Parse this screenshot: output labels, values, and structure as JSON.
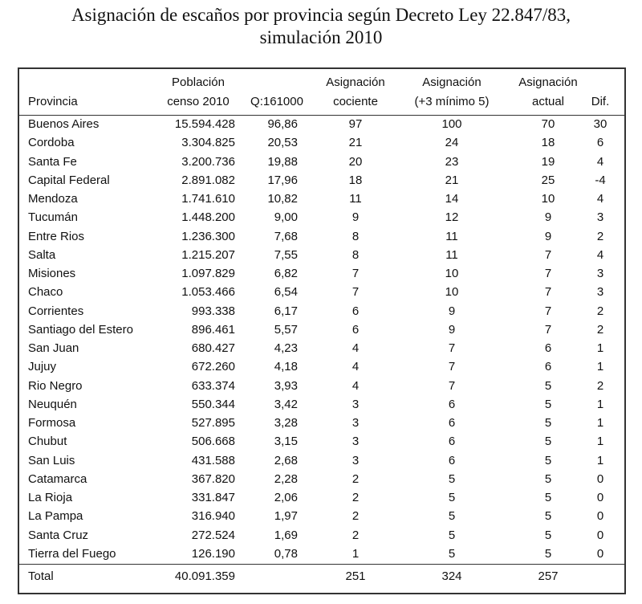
{
  "header": {
    "title_lines": [
      "Asignación de escaños por provincia según Decreto Ley 22.847/83,",
      "simulación 2010"
    ]
  },
  "table": {
    "columns": {
      "provincia": [
        "Provincia"
      ],
      "poblacion": [
        "Población",
        "censo 2010"
      ],
      "q": [
        "Q:161000"
      ],
      "cociente": [
        "Asignación",
        "cociente"
      ],
      "minimo": [
        "Asignación",
        "(+3 mínimo 5)"
      ],
      "actual": [
        "Asignación",
        "actual"
      ],
      "dif": [
        "Dif."
      ]
    },
    "rows": [
      [
        "Buenos Aires",
        "15.594.428",
        "96,86",
        "97",
        "100",
        "70",
        "30"
      ],
      [
        "Cordoba",
        "3.304.825",
        "20,53",
        "21",
        "24",
        "18",
        "6"
      ],
      [
        "Santa Fe",
        "3.200.736",
        "19,88",
        "20",
        "23",
        "19",
        "4"
      ],
      [
        "Capital Federal",
        "2.891.082",
        "17,96",
        "18",
        "21",
        "25",
        "-4"
      ],
      [
        "Mendoza",
        "1.741.610",
        "10,82",
        "11",
        "14",
        "10",
        "4"
      ],
      [
        "Tucumán",
        "1.448.200",
        "9,00",
        "9",
        "12",
        "9",
        "3"
      ],
      [
        "Entre Rios",
        "1.236.300",
        "7,68",
        "8",
        "11",
        "9",
        "2"
      ],
      [
        "Salta",
        "1.215.207",
        "7,55",
        "8",
        "11",
        "7",
        "4"
      ],
      [
        "Misiones",
        "1.097.829",
        "6,82",
        "7",
        "10",
        "7",
        "3"
      ],
      [
        "Chaco",
        "1.053.466",
        "6,54",
        "7",
        "10",
        "7",
        "3"
      ],
      [
        "Corrientes",
        "993.338",
        "6,17",
        "6",
        "9",
        "7",
        "2"
      ],
      [
        "Santiago del Estero",
        "896.461",
        "5,57",
        "6",
        "9",
        "7",
        "2"
      ],
      [
        "San Juan",
        "680.427",
        "4,23",
        "4",
        "7",
        "6",
        "1"
      ],
      [
        "Jujuy",
        "672.260",
        "4,18",
        "4",
        "7",
        "6",
        "1"
      ],
      [
        "Rio Negro",
        "633.374",
        "3,93",
        "4",
        "7",
        "5",
        "2"
      ],
      [
        "Neuquén",
        "550.344",
        "3,42",
        "3",
        "6",
        "5",
        "1"
      ],
      [
        "Formosa",
        "527.895",
        "3,28",
        "3",
        "6",
        "5",
        "1"
      ],
      [
        "Chubut",
        "506.668",
        "3,15",
        "3",
        "6",
        "5",
        "1"
      ],
      [
        "San Luis",
        "431.588",
        "2,68",
        "3",
        "6",
        "5",
        "1"
      ],
      [
        "Catamarca",
        "367.820",
        "2,28",
        "2",
        "5",
        "5",
        "0"
      ],
      [
        "La Rioja",
        "331.847",
        "2,06",
        "2",
        "5",
        "5",
        "0"
      ],
      [
        "La Pampa",
        "316.940",
        "1,97",
        "2",
        "5",
        "5",
        "0"
      ],
      [
        "Santa Cruz",
        "272.524",
        "1,69",
        "2",
        "5",
        "5",
        "0"
      ],
      [
        "Tierra del Fuego",
        "126.190",
        "0,78",
        "1",
        "5",
        "5",
        "0"
      ]
    ],
    "total": {
      "provincia": "Total",
      "poblacion": "40.091.359",
      "cociente": "251",
      "minimo": "324",
      "actual": "257"
    }
  }
}
